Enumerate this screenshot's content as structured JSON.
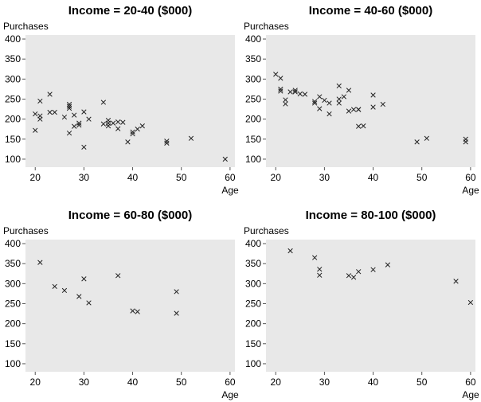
{
  "chart_data": [
    {
      "type": "scatter",
      "title": "Income = 20-40 ($000)",
      "xlabel": "Age",
      "ylabel": "Purchases",
      "xlim": [
        18,
        61
      ],
      "ylim": [
        80,
        410
      ],
      "xticks": [
        20,
        30,
        40,
        50,
        60
      ],
      "yticks": [
        100,
        150,
        200,
        250,
        300,
        350,
        400
      ],
      "marker": "x",
      "grid": false,
      "x": [
        20,
        20,
        21,
        21,
        21,
        23,
        23,
        24,
        26,
        27,
        27,
        27,
        27,
        28,
        28,
        29,
        29,
        30,
        30,
        31,
        34,
        34,
        35,
        35,
        35,
        36,
        37,
        37,
        38,
        39,
        40,
        40,
        41,
        42,
        47,
        47,
        52,
        59
      ],
      "y": [
        172,
        213,
        245,
        208,
        200,
        262,
        217,
        217,
        205,
        237,
        232,
        227,
        165,
        210,
        182,
        190,
        185,
        218,
        130,
        200,
        242,
        188,
        197,
        190,
        183,
        190,
        193,
        176,
        192,
        143,
        168,
        163,
        175,
        183,
        145,
        140,
        152,
        100
      ]
    },
    {
      "type": "scatter",
      "title": "Income = 40-60 ($000)",
      "xlabel": "Age",
      "ylabel": "Purchases",
      "xlim": [
        18,
        61
      ],
      "ylim": [
        80,
        410
      ],
      "xticks": [
        20,
        30,
        40,
        50,
        60
      ],
      "yticks": [
        100,
        150,
        200,
        250,
        300,
        350,
        400
      ],
      "marker": "x",
      "grid": false,
      "x": [
        20,
        21,
        21,
        21,
        22,
        22,
        23,
        24,
        24,
        25,
        26,
        28,
        28,
        29,
        29,
        30,
        31,
        31,
        33,
        33,
        33,
        34,
        35,
        35,
        36,
        37,
        37,
        37,
        38,
        40,
        40,
        42,
        49,
        51,
        59,
        59
      ],
      "y": [
        312,
        302,
        275,
        270,
        248,
        238,
        268,
        272,
        268,
        263,
        262,
        244,
        240,
        256,
        226,
        247,
        240,
        213,
        283,
        250,
        240,
        256,
        272,
        220,
        224,
        224,
        224,
        182,
        183,
        260,
        230,
        237,
        143,
        152,
        150,
        143
      ]
    },
    {
      "type": "scatter",
      "title": "Income = 60-80 ($000)",
      "xlabel": "Age",
      "ylabel": "Purchases",
      "xlim": [
        18,
        61
      ],
      "ylim": [
        80,
        410
      ],
      "xticks": [
        20,
        30,
        40,
        50,
        60
      ],
      "yticks": [
        100,
        150,
        200,
        250,
        300,
        350,
        400
      ],
      "marker": "x",
      "grid": false,
      "x": [
        21,
        24,
        26,
        29,
        30,
        31,
        37,
        40,
        41,
        49,
        49
      ],
      "y": [
        353,
        293,
        283,
        268,
        312,
        252,
        320,
        232,
        230,
        280,
        226
      ]
    },
    {
      "type": "scatter",
      "title": "Income = 80-100 ($000)",
      "xlabel": "Age",
      "ylabel": "Purchases",
      "xlim": [
        18,
        61
      ],
      "ylim": [
        80,
        410
      ],
      "xticks": [
        20,
        30,
        40,
        50,
        60
      ],
      "yticks": [
        100,
        150,
        200,
        250,
        300,
        350,
        400
      ],
      "marker": "x",
      "grid": false,
      "x": [
        23,
        28,
        29,
        29,
        35,
        36,
        37,
        40,
        43,
        57,
        60
      ],
      "y": [
        382,
        365,
        336,
        321,
        320,
        316,
        330,
        335,
        347,
        306,
        253
      ]
    }
  ]
}
